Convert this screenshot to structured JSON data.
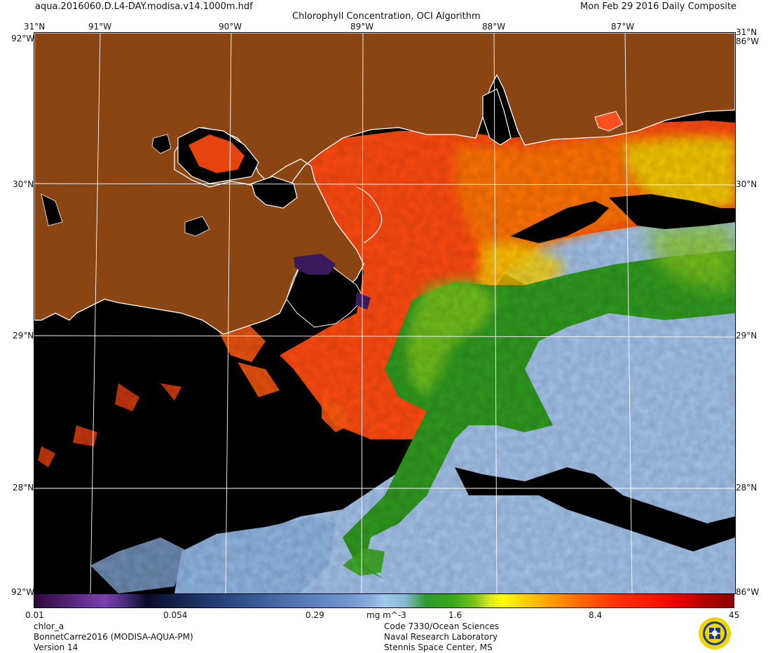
{
  "header": {
    "filename": "aqua.2016060.D.L4-DAY.modisa.v14.1000m.hdf",
    "title": "Chlorophyll Concentration, OCI Algorithm",
    "date": "Mon Feb 29 2016 Daily Composite"
  },
  "map": {
    "lon_labels": [
      "91°W",
      "90°W",
      "89°W",
      "88°W",
      "87°W"
    ],
    "lat_labels": [
      "30°N",
      "29°N",
      "28°N"
    ],
    "corner_lat_top": "31°N",
    "corner_lon_left": "92°W",
    "corner_lon_right": "86°W",
    "land_color": "#8b4513",
    "nodata_color": "#000000"
  },
  "colorbar": {
    "labels": [
      "0.01",
      "0.054",
      "0.29",
      "mg m^-3",
      "1.6",
      "8.4",
      "45"
    ]
  },
  "footer": {
    "product": "chlor_a",
    "project": "BonnetCarre2016 (MODISA-AQUA-PM)",
    "version": "Version 14",
    "org_code": "Code 7330/Ocean Sciences",
    "org_name": "Naval Research Laboratory",
    "org_location": "Stennis Space Center, MS"
  }
}
